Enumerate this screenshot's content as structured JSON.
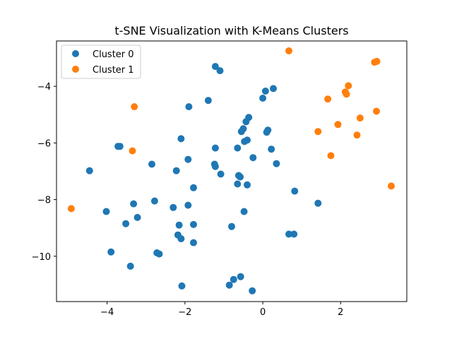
{
  "chart_data": {
    "type": "scatter",
    "title": "t-SNE Visualization with K-Means Clusters",
    "xlabel": "",
    "ylabel": "",
    "xlim": [
      -5.3,
      3.7
    ],
    "ylim": [
      -11.6,
      -2.4
    ],
    "x_ticks": [
      -4,
      -2,
      0,
      2
    ],
    "x_tick_labels": [
      "−4",
      "−2",
      "0",
      "2"
    ],
    "y_ticks": [
      -10,
      -8,
      -6,
      -4
    ],
    "y_tick_labels": [
      "−10",
      "−8",
      "−6",
      "−4"
    ],
    "grid": false,
    "legend_position": "top-left",
    "series": [
      {
        "name": "Cluster 0",
        "color": "#1f77b4",
        "points": [
          [
            -1.22,
            -3.3
          ],
          [
            -1.1,
            -3.45
          ],
          [
            0.27,
            -4.08
          ],
          [
            0.07,
            -4.17
          ],
          [
            0.0,
            -4.42
          ],
          [
            -1.4,
            -4.5
          ],
          [
            -1.9,
            -4.72
          ],
          [
            -0.36,
            -5.1
          ],
          [
            -0.43,
            -5.25
          ],
          [
            -0.5,
            -5.5
          ],
          [
            -0.55,
            -5.6
          ],
          [
            0.13,
            -5.55
          ],
          [
            0.1,
            -5.62
          ],
          [
            -2.1,
            -5.85
          ],
          [
            -0.4,
            -5.9
          ],
          [
            -0.47,
            -5.95
          ],
          [
            -3.72,
            -6.12
          ],
          [
            -3.67,
            -6.12
          ],
          [
            -1.22,
            -6.18
          ],
          [
            -0.65,
            -6.18
          ],
          [
            0.22,
            -6.22
          ],
          [
            -1.92,
            -6.58
          ],
          [
            -0.25,
            -6.52
          ],
          [
            -2.85,
            -6.75
          ],
          [
            -1.24,
            -6.75
          ],
          [
            -1.22,
            -6.83
          ],
          [
            0.35,
            -6.73
          ],
          [
            -4.45,
            -6.98
          ],
          [
            -2.22,
            -6.98
          ],
          [
            -1.08,
            -7.1
          ],
          [
            -0.62,
            -7.15
          ],
          [
            -0.58,
            -7.2
          ],
          [
            -0.65,
            -7.45
          ],
          [
            -0.4,
            -7.48
          ],
          [
            -1.78,
            -7.58
          ],
          [
            0.82,
            -7.7
          ],
          [
            -2.78,
            -8.05
          ],
          [
            -3.32,
            -8.15
          ],
          [
            -1.92,
            -8.2
          ],
          [
            -2.3,
            -8.28
          ],
          [
            1.42,
            -8.13
          ],
          [
            -4.02,
            -8.42
          ],
          [
            -0.48,
            -8.42
          ],
          [
            -3.22,
            -8.63
          ],
          [
            -3.52,
            -8.85
          ],
          [
            -2.15,
            -8.9
          ],
          [
            -1.78,
            -8.88
          ],
          [
            -0.8,
            -8.95
          ],
          [
            0.67,
            -9.22
          ],
          [
            0.8,
            -9.22
          ],
          [
            -2.18,
            -9.25
          ],
          [
            -2.1,
            -9.38
          ],
          [
            -1.78,
            -9.52
          ],
          [
            -3.9,
            -9.85
          ],
          [
            -2.72,
            -9.88
          ],
          [
            -2.66,
            -9.92
          ],
          [
            -3.4,
            -10.35
          ],
          [
            -0.57,
            -10.72
          ],
          [
            -0.75,
            -10.82
          ],
          [
            -0.86,
            -11.02
          ],
          [
            -2.08,
            -11.05
          ],
          [
            -0.27,
            -11.22
          ]
        ]
      },
      {
        "name": "Cluster 1",
        "color": "#ff7f0e",
        "points": [
          [
            0.67,
            -2.75
          ],
          [
            2.87,
            -3.15
          ],
          [
            2.93,
            -3.12
          ],
          [
            2.2,
            -3.98
          ],
          [
            2.12,
            -4.2
          ],
          [
            2.15,
            -4.28
          ],
          [
            1.67,
            -4.45
          ],
          [
            -3.3,
            -4.72
          ],
          [
            2.5,
            -5.12
          ],
          [
            1.93,
            -5.35
          ],
          [
            2.92,
            -4.88
          ],
          [
            1.42,
            -5.6
          ],
          [
            2.42,
            -5.72
          ],
          [
            -3.35,
            -6.28
          ],
          [
            1.75,
            -6.45
          ],
          [
            3.3,
            -7.52
          ],
          [
            -4.92,
            -8.32
          ]
        ]
      }
    ]
  }
}
